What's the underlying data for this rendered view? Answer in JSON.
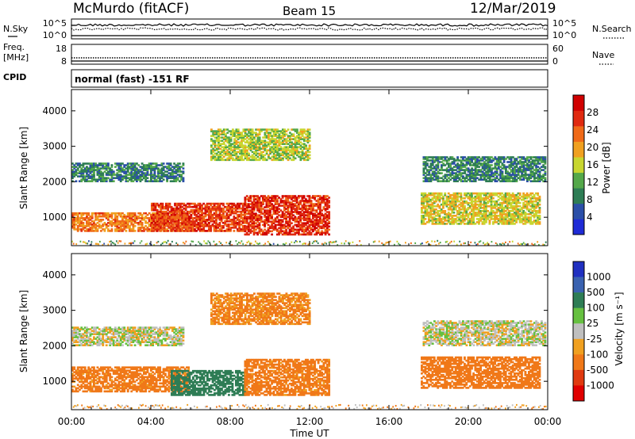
{
  "header": {
    "station": "McMurdo (fitACF)",
    "beam": "Beam 15",
    "date": "12/Mar/2019"
  },
  "strip_panels": {
    "nsky_label": "N.Sky",
    "nsky_ticks": [
      "10^5",
      "10^0"
    ],
    "nsearch_label": "N.Search",
    "nsearch_ticks": [
      "10^5",
      "10^0"
    ],
    "freq_label_1": "Freq.",
    "freq_label_2": "[MHz]",
    "freq_ticks": [
      "18",
      "8"
    ],
    "nave_label": "Nave",
    "nave_ticks": [
      "60",
      "0"
    ],
    "cpid_label": "CPID",
    "cpid_text": "normal (fast) -151 RF"
  },
  "colors": {
    "power_scale": [
      "#1f2bd6",
      "#2b4fa8",
      "#2e7d55",
      "#54a84a",
      "#c8d630",
      "#f0a020",
      "#f06a18",
      "#e02a10",
      "#d00000"
    ],
    "velocity_scale": [
      "#2030c0",
      "#3a62b0",
      "#2e7d55",
      "#66c040",
      "#bfbfbf",
      "#f0a020",
      "#f07818",
      "#e03a10",
      "#e00000"
    ]
  },
  "chart_data": [
    {
      "type": "heatmap",
      "title": "Power",
      "ylabel": "Slant Range [km]",
      "y_ticks": [
        "4000",
        "3000",
        "2000",
        "1000"
      ],
      "ylim": [
        200,
        4600
      ],
      "xlim": [
        "00:00",
        "24:00"
      ],
      "colorbar_label": "Power [dB]",
      "colorbar_ticks": [
        "28",
        "24",
        "20",
        "16",
        "12",
        "8",
        "4"
      ],
      "colorbar_range": [
        0,
        32
      ],
      "echo_regions": [
        {
          "t_start": 0.0,
          "t_end": 5.9,
          "r_lo": 600,
          "r_hi": 1100,
          "level": 22
        },
        {
          "t_start": 4.0,
          "t_end": 8.7,
          "r_lo": 600,
          "r_hi": 1400,
          "level": 26
        },
        {
          "t_start": 8.7,
          "t_end": 13.0,
          "r_lo": 500,
          "r_hi": 1600,
          "level": 27
        },
        {
          "t_start": 0.0,
          "t_end": 5.6,
          "r_lo": 2000,
          "r_hi": 2500,
          "level": 9
        },
        {
          "t_start": 7.0,
          "t_end": 12.0,
          "r_lo": 2600,
          "r_hi": 3500,
          "level": 15
        },
        {
          "t_start": 17.6,
          "t_end": 23.6,
          "r_lo": 800,
          "r_hi": 1700,
          "level": 17
        },
        {
          "t_start": 17.7,
          "t_end": 23.9,
          "r_lo": 2000,
          "r_hi": 2700,
          "level": 9
        }
      ]
    },
    {
      "type": "heatmap",
      "title": "Velocity",
      "ylabel": "Slant Range [km]",
      "y_ticks": [
        "4000",
        "3000",
        "2000",
        "1000"
      ],
      "ylim": [
        200,
        4600
      ],
      "xlim": [
        "00:00",
        "24:00"
      ],
      "xlabel": "Time UT",
      "x_ticks": [
        "00:00",
        "04:00",
        "08:00",
        "12:00",
        "16:00",
        "20:00",
        "00:00"
      ],
      "colorbar_label": "Velocity [m s⁻¹]",
      "colorbar_ticks": [
        "1000",
        "500",
        "100",
        "25",
        "-25",
        "-100",
        "-500",
        "-1000"
      ],
      "echo_regions": [
        {
          "t_start": 0.0,
          "t_end": 5.9,
          "r_lo": 700,
          "r_hi": 1400,
          "velocity": -150
        },
        {
          "t_start": 5.0,
          "t_end": 8.7,
          "r_lo": 600,
          "r_hi": 1300,
          "velocity": 300
        },
        {
          "t_start": 8.7,
          "t_end": 13.0,
          "r_lo": 600,
          "r_hi": 1600,
          "velocity": -150
        },
        {
          "t_start": 0.0,
          "t_end": 5.6,
          "r_lo": 2000,
          "r_hi": 2500,
          "velocity": 0
        },
        {
          "t_start": 7.0,
          "t_end": 12.0,
          "r_lo": 2600,
          "r_hi": 3500,
          "velocity": -120
        },
        {
          "t_start": 17.6,
          "t_end": 23.6,
          "r_lo": 800,
          "r_hi": 1700,
          "velocity": -400
        },
        {
          "t_start": 17.7,
          "t_end": 23.9,
          "r_lo": 2000,
          "r_hi": 2700,
          "velocity": 0
        }
      ]
    }
  ]
}
